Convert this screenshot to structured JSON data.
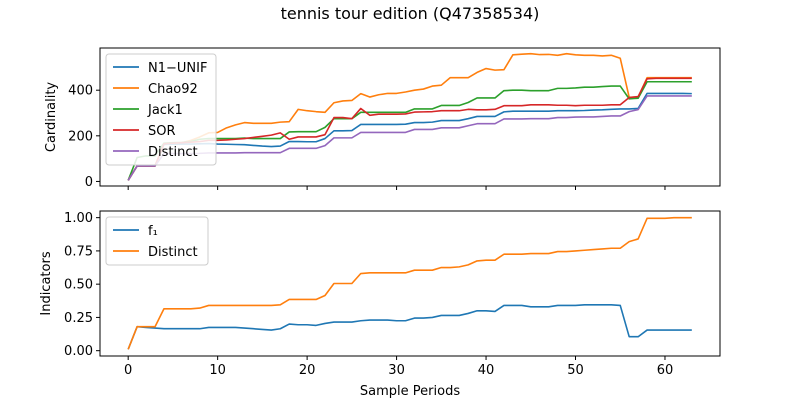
{
  "figure": {
    "title": "tennis tour edition (Q47358534)",
    "xlabel": "Sample Periods"
  },
  "chart_data": [
    {
      "type": "line",
      "title": "",
      "xlabel": "",
      "ylabel": "Cardinality",
      "xlim": [
        -3.15,
        66.15
      ],
      "ylim": [
        -20,
        585
      ],
      "xticks": [
        0,
        10,
        20,
        30,
        40,
        50,
        60
      ],
      "yticks": [
        0,
        200,
        400
      ],
      "xtick_labels_visible": false,
      "grid": false,
      "legend_position": "upper left",
      "x": [
        0,
        1,
        2,
        3,
        4,
        5,
        6,
        7,
        8,
        9,
        10,
        11,
        12,
        13,
        14,
        15,
        16,
        17,
        18,
        19,
        20,
        21,
        22,
        23,
        24,
        25,
        26,
        27,
        28,
        29,
        30,
        31,
        32,
        33,
        34,
        35,
        36,
        37,
        38,
        39,
        40,
        41,
        42,
        43,
        44,
        45,
        46,
        47,
        48,
        49,
        50,
        51,
        52,
        53,
        54,
        55,
        56,
        57,
        58,
        59,
        60,
        61,
        62,
        63
      ],
      "series": [
        {
          "name": "N1−UNIF",
          "color": "#1f77b4",
          "values": [
            5,
            68,
            68,
            68,
            162,
            163,
            164,
            164,
            165,
            166,
            164,
            163,
            162,
            161,
            158,
            155,
            153,
            155,
            175,
            175,
            174,
            174,
            188,
            222,
            222,
            223,
            250,
            250,
            250,
            250,
            250,
            251,
            258,
            258,
            260,
            267,
            267,
            267,
            275,
            285,
            285,
            285,
            305,
            308,
            308,
            308,
            308,
            308,
            310,
            310,
            310,
            311,
            313,
            314,
            316,
            318,
            318,
            320,
            386,
            386,
            386,
            386,
            386,
            385
          ]
        },
        {
          "name": "Chao92",
          "color": "#ff7f0e",
          "values": [
            5,
            68,
            68,
            68,
            166,
            168,
            170,
            180,
            195,
            213,
            215,
            235,
            248,
            258,
            255,
            255,
            255,
            260,
            262,
            316,
            310,
            306,
            303,
            345,
            353,
            355,
            385,
            370,
            380,
            386,
            386,
            392,
            400,
            405,
            418,
            422,
            455,
            455,
            455,
            478,
            495,
            488,
            490,
            555,
            558,
            560,
            556,
            557,
            553,
            560,
            555,
            553,
            553,
            550,
            553,
            540,
            369,
            370,
            455,
            455,
            455,
            455,
            455,
            455
          ]
        },
        {
          "name": "Jack1",
          "color": "#2ca02c",
          "values": [
            5,
            105,
            112,
            112,
            168,
            170,
            171,
            175,
            185,
            188,
            188,
            188,
            188,
            190,
            188,
            188,
            188,
            188,
            217,
            218,
            218,
            218,
            237,
            275,
            275,
            275,
            303,
            303,
            303,
            303,
            303,
            303,
            318,
            318,
            318,
            333,
            333,
            333,
            346,
            366,
            366,
            366,
            398,
            400,
            400,
            398,
            398,
            398,
            408,
            408,
            410,
            413,
            413,
            416,
            418,
            418,
            362,
            365,
            437,
            437,
            437,
            437,
            437,
            437
          ]
        },
        {
          "name": "SOR",
          "color": "#d62728",
          "values": [
            5,
            68,
            68,
            68,
            165,
            168,
            170,
            172,
            175,
            180,
            180,
            182,
            185,
            188,
            193,
            198,
            203,
            213,
            185,
            195,
            195,
            195,
            205,
            280,
            280,
            275,
            320,
            290,
            295,
            295,
            295,
            296,
            304,
            305,
            306,
            310,
            310,
            310,
            316,
            314,
            314,
            316,
            332,
            332,
            332,
            336,
            336,
            336,
            334,
            334,
            332,
            334,
            334,
            334,
            336,
            336,
            368,
            372,
            450,
            452,
            452,
            452,
            452,
            452
          ]
        },
        {
          "name": "Distinct",
          "color": "#9467bd",
          "values": [
            5,
            68,
            68,
            68,
            122,
            122,
            122,
            122,
            123,
            125,
            125,
            125,
            125,
            126,
            126,
            126,
            126,
            126,
            145,
            145,
            145,
            145,
            157,
            191,
            191,
            191,
            215,
            215,
            215,
            215,
            215,
            215,
            228,
            228,
            228,
            235,
            235,
            235,
            244,
            253,
            253,
            253,
            274,
            274,
            274,
            275,
            275,
            275,
            280,
            280,
            282,
            283,
            283,
            285,
            287,
            287,
            306,
            315,
            375,
            375,
            375,
            375,
            375,
            375
          ]
        }
      ]
    },
    {
      "type": "line",
      "title": "",
      "xlabel": "Sample Periods",
      "ylabel": "Indicators",
      "xlim": [
        -3.15,
        66.15
      ],
      "ylim": [
        -0.04,
        1.05
      ],
      "xticks": [
        0,
        10,
        20,
        30,
        40,
        50,
        60
      ],
      "yticks": [
        0.0,
        0.25,
        0.5,
        0.75,
        1.0
      ],
      "ytick_labels": [
        "0.00",
        "0.25",
        "0.50",
        "0.75",
        "1.00"
      ],
      "grid": false,
      "legend_position": "upper left",
      "x": [
        0,
        1,
        2,
        3,
        4,
        5,
        6,
        7,
        8,
        9,
        10,
        11,
        12,
        13,
        14,
        15,
        16,
        17,
        18,
        19,
        20,
        21,
        22,
        23,
        24,
        25,
        26,
        27,
        28,
        29,
        30,
        31,
        32,
        33,
        34,
        35,
        36,
        37,
        38,
        39,
        40,
        41,
        42,
        43,
        44,
        45,
        46,
        47,
        48,
        49,
        50,
        51,
        52,
        53,
        54,
        55,
        56,
        57,
        58,
        59,
        60,
        61,
        62,
        63
      ],
      "series": [
        {
          "name": "f₁",
          "color": "#1f77b4",
          "values": [
            0.01,
            0.18,
            0.175,
            0.17,
            0.165,
            0.165,
            0.165,
            0.165,
            0.165,
            0.175,
            0.175,
            0.175,
            0.175,
            0.17,
            0.165,
            0.16,
            0.155,
            0.165,
            0.2,
            0.195,
            0.195,
            0.19,
            0.205,
            0.215,
            0.215,
            0.215,
            0.225,
            0.23,
            0.23,
            0.23,
            0.225,
            0.225,
            0.245,
            0.245,
            0.25,
            0.265,
            0.265,
            0.265,
            0.28,
            0.3,
            0.3,
            0.295,
            0.34,
            0.34,
            0.34,
            0.33,
            0.33,
            0.33,
            0.34,
            0.34,
            0.34,
            0.345,
            0.345,
            0.345,
            0.345,
            0.34,
            0.105,
            0.105,
            0.155,
            0.155,
            0.155,
            0.155,
            0.155,
            0.155
          ]
        },
        {
          "name": "Distinct",
          "color": "#ff7f0e",
          "values": [
            0.01,
            0.18,
            0.18,
            0.18,
            0.315,
            0.315,
            0.315,
            0.315,
            0.32,
            0.34,
            0.34,
            0.34,
            0.34,
            0.34,
            0.34,
            0.34,
            0.34,
            0.345,
            0.385,
            0.385,
            0.385,
            0.385,
            0.415,
            0.505,
            0.505,
            0.505,
            0.58,
            0.585,
            0.585,
            0.585,
            0.585,
            0.585,
            0.605,
            0.605,
            0.605,
            0.625,
            0.625,
            0.63,
            0.645,
            0.675,
            0.68,
            0.68,
            0.725,
            0.725,
            0.725,
            0.73,
            0.73,
            0.73,
            0.745,
            0.745,
            0.75,
            0.755,
            0.76,
            0.765,
            0.77,
            0.77,
            0.82,
            0.84,
            0.995,
            0.995,
            0.995,
            1.0,
            1.0,
            1.0
          ]
        }
      ]
    }
  ]
}
